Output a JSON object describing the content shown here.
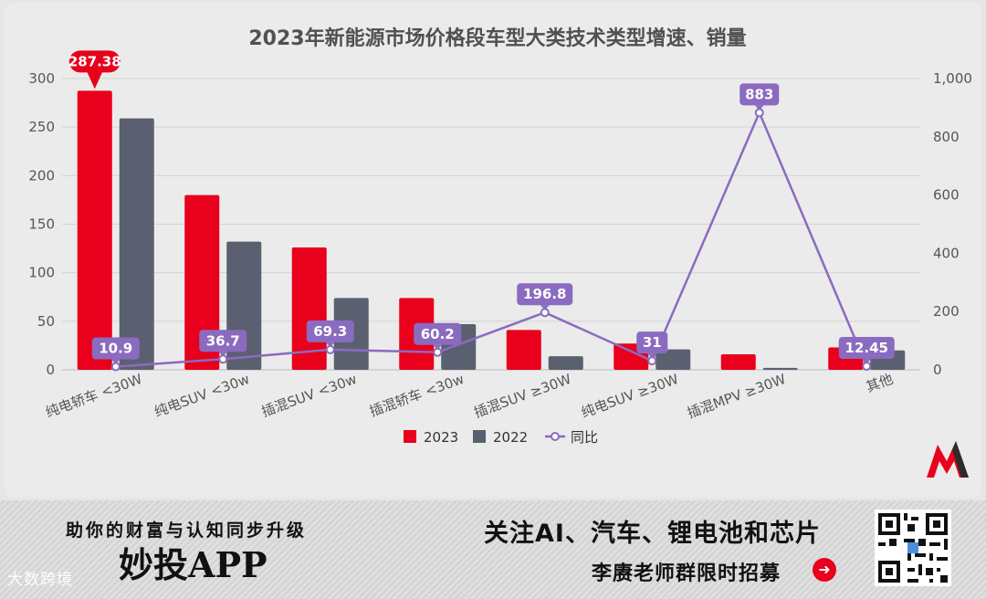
{
  "chart_data": {
    "type": "bar+line",
    "title": "2023年新能源市场价格段车型大类技术类型增速、销量",
    "categories": [
      "纯电轿车 <30W",
      "纯电SUV <30w",
      "插混SUV <30w",
      "插混轿车 <30w",
      "插混SUV ≥30W",
      "纯电SUV ≥30W",
      "插混MPV ≥30W",
      "其他"
    ],
    "series": [
      {
        "name": "2023",
        "type": "bar",
        "axis": "left",
        "color": "#e8001c",
        "values": [
          287.38,
          180,
          126,
          74,
          41,
          27,
          16,
          23
        ]
      },
      {
        "name": "2022",
        "type": "bar",
        "axis": "left",
        "color": "#5b6070",
        "values": [
          259,
          132,
          74,
          47,
          14,
          21,
          2,
          20
        ]
      },
      {
        "name": "同比",
        "type": "line",
        "axis": "right",
        "color": "#8a6bbf",
        "values": [
          10.9,
          36.7,
          69.3,
          60.2,
          196.8,
          31,
          883,
          12.45
        ]
      }
    ],
    "bar_labels": [
      {
        "series": "2023",
        "index": 0,
        "text": "287.38"
      }
    ],
    "line_labels": [
      "10.9",
      "36.7",
      "69.3",
      "60.2",
      "196.8",
      "31",
      "883",
      "12.45"
    ],
    "left_axis": {
      "range": [
        0,
        300
      ],
      "ticks": [
        "0",
        "50",
        "100",
        "150",
        "200",
        "250",
        "300"
      ]
    },
    "right_axis": {
      "range": [
        0,
        1000
      ],
      "ticks": [
        "0",
        "200",
        "400",
        "600",
        "800",
        "1,000"
      ]
    },
    "legend": {
      "position": "bottom-center",
      "items": [
        "2023",
        "2022",
        "同比"
      ]
    }
  },
  "banner": {
    "slogan": "助你的财富与认知同步升级",
    "app_name": "妙投APP",
    "follow_text": "关注AI、汽车、锂电池和芯片",
    "recruit_text": "李赓老师群限时招募",
    "recruit_arrow": "➜",
    "watermark": "大数跨境"
  },
  "colors": {
    "accent_red": "#e8001c",
    "accent_gray": "#5b6070",
    "accent_purple": "#8a6bbf"
  }
}
